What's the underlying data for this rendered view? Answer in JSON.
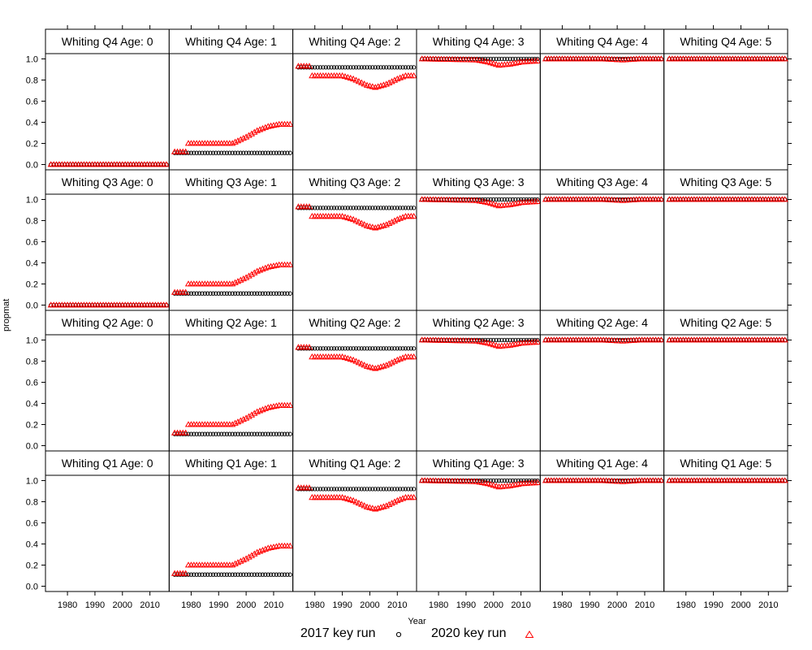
{
  "chart_data": {
    "type": "scatter",
    "layout": "lattice 6 columns x 4 rows",
    "xlabel": "Year",
    "ylabel": "propmat",
    "x_ticks": [
      1980,
      1990,
      2000,
      2010
    ],
    "y_ticks": [
      "0.0",
      "0.2",
      "0.4",
      "0.6",
      "0.8",
      "1.0"
    ],
    "xlim": [
      1972,
      2017
    ],
    "ylim": [
      -0.05,
      1.05
    ],
    "grid": false,
    "legend_position": "bottom",
    "strip_color": "#ffffff",
    "series": [
      {
        "name": "2017 key run",
        "marker": "circle",
        "color": "#000000"
      },
      {
        "name": "2020 key run",
        "marker": "triangle",
        "color": "#ff0000"
      }
    ],
    "panel_titles": [
      [
        "Whiting Q4 Age: 0",
        "Whiting Q4 Age: 1",
        "Whiting Q4 Age: 2",
        "Whiting Q4 Age: 3",
        "Whiting Q4 Age: 4",
        "Whiting Q4 Age: 5"
      ],
      [
        "Whiting Q3 Age: 0",
        "Whiting Q3 Age: 1",
        "Whiting Q3 Age: 2",
        "Whiting Q3 Age: 3",
        "Whiting Q3 Age: 4",
        "Whiting Q3 Age: 5"
      ],
      [
        "Whiting Q2 Age: 0",
        "Whiting Q2 Age: 1",
        "Whiting Q2 Age: 2",
        "Whiting Q2 Age: 3",
        "Whiting Q2 Age: 4",
        "Whiting Q2 Age: 5"
      ],
      [
        "Whiting Q1 Age: 0",
        "Whiting Q1 Age: 1",
        "Whiting Q1 Age: 2",
        "Whiting Q1 Age: 3",
        "Whiting Q1 Age: 4",
        "Whiting Q1 Age: 5"
      ]
    ],
    "years": [
      1974,
      2016
    ],
    "by_age": [
      {
        "age": 0,
        "run_2017": {
          "constant": 0.0
        },
        "run_2020": {
          "constant": 0.0
        }
      },
      {
        "age": 1,
        "run_2017": {
          "constant": 0.11
        },
        "run_2020": {
          "keypoints": [
            [
              1974,
              0.12
            ],
            [
              1978,
              0.12
            ],
            [
              1979,
              0.2
            ],
            [
              1995,
              0.2
            ],
            [
              2000,
              0.26
            ],
            [
              2004,
              0.32
            ],
            [
              2008,
              0.36
            ],
            [
              2012,
              0.38
            ],
            [
              2016,
              0.38
            ]
          ]
        }
      },
      {
        "age": 2,
        "run_2017": {
          "keypoints": [
            [
              1974,
              0.92
            ],
            [
              1978,
              0.92
            ],
            [
              1979,
              0.92
            ],
            [
              2016,
              0.92
            ]
          ]
        },
        "run_2020": {
          "keypoints": [
            [
              1974,
              0.93
            ],
            [
              1978,
              0.93
            ],
            [
              1979,
              0.84
            ],
            [
              1990,
              0.84
            ],
            [
              1994,
              0.81
            ],
            [
              1999,
              0.75
            ],
            [
              2002,
              0.73
            ],
            [
              2006,
              0.76
            ],
            [
              2010,
              0.81
            ],
            [
              2013,
              0.84
            ],
            [
              2016,
              0.84
            ]
          ]
        }
      },
      {
        "age": 3,
        "run_2017": {
          "constant": 1.0
        },
        "run_2020": {
          "keypoints": [
            [
              1974,
              1.0
            ],
            [
              1994,
              0.99
            ],
            [
              1998,
              0.97
            ],
            [
              2002,
              0.94
            ],
            [
              2006,
              0.95
            ],
            [
              2010,
              0.97
            ],
            [
              2016,
              0.98
            ]
          ]
        }
      },
      {
        "age": 4,
        "run_2017": {
          "constant": 1.0
        },
        "run_2020": {
          "keypoints": [
            [
              1974,
              1.0
            ],
            [
              1995,
              1.0
            ],
            [
              2002,
              0.99
            ],
            [
              2008,
              1.0
            ],
            [
              2016,
              1.0
            ]
          ]
        }
      },
      {
        "age": 5,
        "run_2017": {
          "constant": 1.0
        },
        "run_2020": {
          "constant": 1.0
        }
      }
    ],
    "panels_without_2017_run": [
      "Whiting Q2 Age: 0",
      "Whiting Q1 Age: 0"
    ],
    "panels_without_2020_run": [
      "Whiting Q2 Age: 0",
      "Whiting Q1 Age: 0"
    ]
  }
}
